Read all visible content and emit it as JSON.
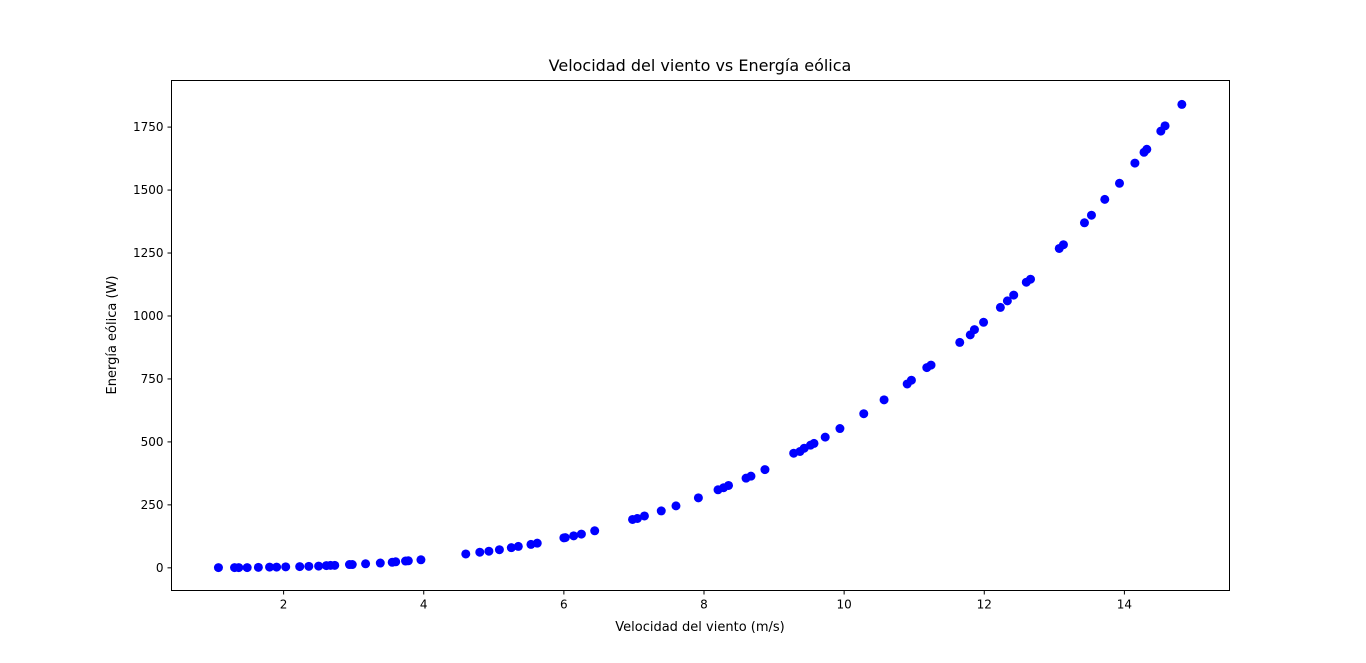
{
  "chart_data": {
    "type": "scatter",
    "title": "Velocidad del viento vs Energía eólica",
    "xlabel": "Velocidad del viento (m/s)",
    "ylabel": "Energía eólica (W)",
    "xlim": [
      0.4,
      15.5
    ],
    "ylim": [
      -90,
      1935
    ],
    "xticks": [
      2,
      4,
      6,
      8,
      10,
      12,
      14
    ],
    "yticks": [
      0,
      250,
      500,
      750,
      1000,
      1250,
      1500,
      1750
    ],
    "grid": false,
    "legend": "none",
    "marker_color": "#0000ff",
    "points": [
      {
        "x": 1.07,
        "y": 1
      },
      {
        "x": 1.3,
        "y": 1
      },
      {
        "x": 1.36,
        "y": 1
      },
      {
        "x": 1.48,
        "y": 1
      },
      {
        "x": 1.64,
        "y": 2
      },
      {
        "x": 1.8,
        "y": 3
      },
      {
        "x": 1.9,
        "y": 3
      },
      {
        "x": 2.03,
        "y": 4
      },
      {
        "x": 2.23,
        "y": 5
      },
      {
        "x": 2.36,
        "y": 6
      },
      {
        "x": 2.5,
        "y": 7
      },
      {
        "x": 2.61,
        "y": 9
      },
      {
        "x": 2.67,
        "y": 10
      },
      {
        "x": 2.73,
        "y": 10
      },
      {
        "x": 2.94,
        "y": 13
      },
      {
        "x": 2.98,
        "y": 13
      },
      {
        "x": 3.17,
        "y": 16
      },
      {
        "x": 3.38,
        "y": 19
      },
      {
        "x": 3.55,
        "y": 22
      },
      {
        "x": 3.6,
        "y": 24
      },
      {
        "x": 3.74,
        "y": 27
      },
      {
        "x": 3.78,
        "y": 28
      },
      {
        "x": 3.96,
        "y": 32
      },
      {
        "x": 4.6,
        "y": 55
      },
      {
        "x": 4.8,
        "y": 62
      },
      {
        "x": 4.93,
        "y": 66
      },
      {
        "x": 5.08,
        "y": 72
      },
      {
        "x": 5.25,
        "y": 80
      },
      {
        "x": 5.35,
        "y": 85
      },
      {
        "x": 5.53,
        "y": 93
      },
      {
        "x": 5.62,
        "y": 98
      },
      {
        "x": 6.0,
        "y": 119
      },
      {
        "x": 6.02,
        "y": 120
      },
      {
        "x": 6.14,
        "y": 127
      },
      {
        "x": 6.25,
        "y": 134
      },
      {
        "x": 6.44,
        "y": 147
      },
      {
        "x": 6.98,
        "y": 192
      },
      {
        "x": 7.05,
        "y": 196
      },
      {
        "x": 7.15,
        "y": 206
      },
      {
        "x": 7.39,
        "y": 226
      },
      {
        "x": 7.6,
        "y": 246
      },
      {
        "x": 7.92,
        "y": 278
      },
      {
        "x": 8.2,
        "y": 310
      },
      {
        "x": 8.28,
        "y": 318
      },
      {
        "x": 8.35,
        "y": 327
      },
      {
        "x": 8.6,
        "y": 356
      },
      {
        "x": 8.67,
        "y": 364
      },
      {
        "x": 8.87,
        "y": 390
      },
      {
        "x": 9.28,
        "y": 455
      },
      {
        "x": 9.37,
        "y": 462
      },
      {
        "x": 9.43,
        "y": 475
      },
      {
        "x": 9.52,
        "y": 487
      },
      {
        "x": 9.57,
        "y": 494
      },
      {
        "x": 9.73,
        "y": 519
      },
      {
        "x": 9.94,
        "y": 553
      },
      {
        "x": 10.28,
        "y": 612
      },
      {
        "x": 10.57,
        "y": 667
      },
      {
        "x": 10.9,
        "y": 730
      },
      {
        "x": 10.96,
        "y": 745
      },
      {
        "x": 11.18,
        "y": 795
      },
      {
        "x": 11.24,
        "y": 805
      },
      {
        "x": 11.65,
        "y": 895
      },
      {
        "x": 11.8,
        "y": 925
      },
      {
        "x": 11.86,
        "y": 946
      },
      {
        "x": 11.99,
        "y": 975
      },
      {
        "x": 12.23,
        "y": 1034
      },
      {
        "x": 12.33,
        "y": 1060
      },
      {
        "x": 12.42,
        "y": 1083
      },
      {
        "x": 12.6,
        "y": 1134
      },
      {
        "x": 12.66,
        "y": 1146
      },
      {
        "x": 13.07,
        "y": 1268
      },
      {
        "x": 13.13,
        "y": 1283
      },
      {
        "x": 13.43,
        "y": 1370
      },
      {
        "x": 13.53,
        "y": 1400
      },
      {
        "x": 13.72,
        "y": 1463
      },
      {
        "x": 13.93,
        "y": 1527
      },
      {
        "x": 14.15,
        "y": 1607
      },
      {
        "x": 14.28,
        "y": 1650
      },
      {
        "x": 14.32,
        "y": 1662
      },
      {
        "x": 14.52,
        "y": 1734
      },
      {
        "x": 14.58,
        "y": 1755
      },
      {
        "x": 14.82,
        "y": 1840
      }
    ]
  }
}
